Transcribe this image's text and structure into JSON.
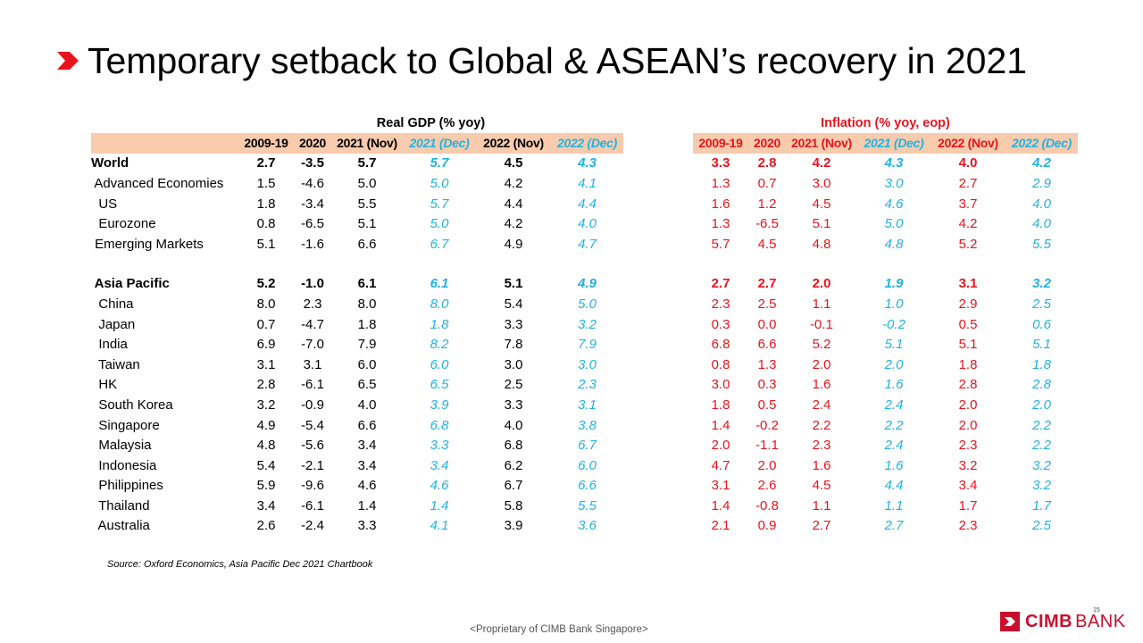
{
  "title": "Temporary setback to Global & ASEAN’s recovery in 2021",
  "colors": {
    "accent_red": "#e8141c",
    "dec_blue": "#1fb3e4",
    "header_fill": "#f8cbad",
    "logo_red": "#c8102e"
  },
  "icons": {
    "title_bullet": "red-chevron-icon",
    "logo": "cimb-logo-icon"
  },
  "gdp": {
    "caption": "Real GDP (% yoy)",
    "columns": [
      "2009-19",
      "2020",
      "2021 (Nov)",
      "2021 (Dec)",
      "2022 (Nov)",
      "2022 (Dec)"
    ],
    "rows": [
      {
        "label": "World",
        "values": [
          "2.7",
          "-3.5",
          "5.7",
          "5.7",
          "4.5",
          "4.3"
        ],
        "bold": true
      },
      {
        "label": " Advanced Economies",
        "values": [
          "1.5",
          "-4.6",
          "5.0",
          "5.0",
          "4.2",
          "4.1"
        ]
      },
      {
        "label": "  US",
        "values": [
          "1.8",
          "-3.4",
          "5.5",
          "5.7",
          "4.4",
          "4.4"
        ]
      },
      {
        "label": "  Eurozone",
        "values": [
          "0.8",
          "-6.5",
          "5.1",
          "5.0",
          "4.2",
          "4.0"
        ]
      },
      {
        "label": " Emerging Markets",
        "values": [
          "5.1",
          "-1.6",
          "6.6",
          "6.7",
          "4.9",
          "4.7"
        ]
      },
      {
        "label": "",
        "values": [
          "",
          "",
          "",
          "",
          "",
          ""
        ],
        "spacer": true
      },
      {
        "label": " Asia Pacific",
        "values": [
          "5.2",
          "-1.0",
          "6.1",
          "6.1",
          "5.1",
          "4.9"
        ],
        "bold": true
      },
      {
        "label": "  China",
        "values": [
          "8.0",
          "2.3",
          "8.0",
          "8.0",
          "5.4",
          "5.0"
        ]
      },
      {
        "label": "  Japan",
        "values": [
          "0.7",
          "-4.7",
          "1.8",
          "1.8",
          "3.3",
          "3.2"
        ]
      },
      {
        "label": "  India",
        "values": [
          "6.9",
          "-7.0",
          "7.9",
          "8.2",
          "7.8",
          "7.9"
        ]
      },
      {
        "label": "  Taiwan",
        "values": [
          "3.1",
          "3.1",
          "6.0",
          "6.0",
          "3.0",
          "3.0"
        ]
      },
      {
        "label": "  HK",
        "values": [
          "2.8",
          "-6.1",
          "6.5",
          "6.5",
          "2.5",
          "2.3"
        ]
      },
      {
        "label": "  South Korea",
        "values": [
          "3.2",
          "-0.9",
          "4.0",
          "3.9",
          "3.3",
          "3.1"
        ]
      },
      {
        "label": "  Singapore",
        "values": [
          "4.9",
          "-5.4",
          "6.6",
          "6.8",
          "4.0",
          "3.8"
        ]
      },
      {
        "label": "  Malaysia",
        "values": [
          "4.8",
          "-5.6",
          "3.4",
          "3.3",
          "6.8",
          "6.7"
        ]
      },
      {
        "label": "  Indonesia",
        "values": [
          "5.4",
          "-2.1",
          "3.4",
          "3.4",
          "6.2",
          "6.0"
        ]
      },
      {
        "label": "  Philippines",
        "values": [
          "5.9",
          "-9.6",
          "4.6",
          "4.6",
          "6.7",
          "6.6"
        ]
      },
      {
        "label": "  Thailand",
        "values": [
          "3.4",
          "-6.1",
          "1.4",
          "1.4",
          "5.8",
          "5.5"
        ]
      },
      {
        "label": "  Australia",
        "values": [
          "2.6",
          "-2.4",
          "3.3",
          "4.1",
          "3.9",
          "3.6"
        ]
      }
    ]
  },
  "inflation": {
    "caption": "Inflation (% yoy, eop)",
    "columns": [
      "2009-19",
      "2020",
      "2021 (Nov)",
      "2021 (Dec)",
      "2022 (Nov)",
      "2022 (Dec)"
    ],
    "rows": [
      {
        "values": [
          "3.3",
          "2.8",
          "4.2",
          "4.3",
          "4.0",
          "4.2"
        ],
        "bold": true
      },
      {
        "values": [
          "1.3",
          "0.7",
          "3.0",
          "3.0",
          "2.7",
          "2.9"
        ]
      },
      {
        "values": [
          "1.6",
          "1.2",
          "4.5",
          "4.6",
          "3.7",
          "4.0"
        ]
      },
      {
        "values": [
          "1.3",
          "-6.5",
          "5.1",
          "5.0",
          "4.2",
          "4.0"
        ]
      },
      {
        "values": [
          "5.7",
          "4.5",
          "4.8",
          "4.8",
          "5.2",
          "5.5"
        ]
      },
      {
        "values": [
          "",
          "",
          "",
          "",
          "",
          ""
        ],
        "spacer": true
      },
      {
        "values": [
          "2.7",
          "2.7",
          "2.0",
          "1.9",
          "3.1",
          "3.2"
        ],
        "bold": true
      },
      {
        "values": [
          "2.3",
          "2.5",
          "1.1",
          "1.0",
          "2.9",
          "2.5"
        ]
      },
      {
        "values": [
          "0.3",
          "0.0",
          "-0.1",
          "-0.2",
          "0.5",
          "0.6"
        ]
      },
      {
        "values": [
          "6.8",
          "6.6",
          "5.2",
          "5.1",
          "5.1",
          "5.1"
        ]
      },
      {
        "values": [
          "0.8",
          "1.3",
          "2.0",
          "2.0",
          "1.8",
          "1.8"
        ]
      },
      {
        "values": [
          "3.0",
          "0.3",
          "1.6",
          "1.6",
          "2.8",
          "2.8"
        ]
      },
      {
        "values": [
          "1.8",
          "0.5",
          "2.4",
          "2.4",
          "2.0",
          "2.0"
        ]
      },
      {
        "values": [
          "1.4",
          "-0.2",
          "2.2",
          "2.2",
          "2.0",
          "2.2"
        ]
      },
      {
        "values": [
          "2.0",
          "-1.1",
          "2.3",
          "2.4",
          "2.3",
          "2.2"
        ]
      },
      {
        "values": [
          "4.7",
          "2.0",
          "1.6",
          "1.6",
          "3.2",
          "3.2"
        ]
      },
      {
        "values": [
          "3.1",
          "2.6",
          "4.5",
          "4.4",
          "3.4",
          "3.2"
        ]
      },
      {
        "values": [
          "1.4",
          "-0.8",
          "1.1",
          "1.1",
          "1.7",
          "1.7"
        ]
      },
      {
        "values": [
          "2.1",
          "0.9",
          "2.7",
          "2.7",
          "2.3",
          "2.5"
        ]
      }
    ]
  },
  "source": "Source: Oxford Economics, Asia Pacific Dec 2021 Chartbook",
  "footer": "<Proprietary of CIMB Bank Singapore>",
  "page_number": "15",
  "logo": {
    "brand": "CIMB",
    "suffix": "BANK"
  }
}
